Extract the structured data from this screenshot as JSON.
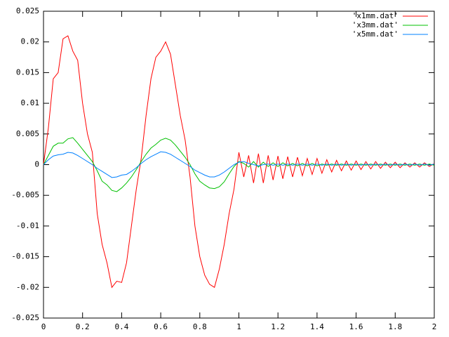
{
  "chart_data": {
    "type": "line",
    "x": [
      0,
      0.025,
      0.05,
      0.075,
      0.1,
      0.125,
      0.15,
      0.175,
      0.2,
      0.225,
      0.25,
      0.275,
      0.3,
      0.325,
      0.35,
      0.375,
      0.4,
      0.425,
      0.45,
      0.475,
      0.5,
      0.525,
      0.55,
      0.575,
      0.6,
      0.625,
      0.65,
      0.675,
      0.7,
      0.725,
      0.75,
      0.775,
      0.8,
      0.825,
      0.85,
      0.875,
      0.9,
      0.925,
      0.95,
      0.975,
      1,
      1.025,
      1.05,
      1.075,
      1.1,
      1.125,
      1.15,
      1.175,
      1.2,
      1.225,
      1.25,
      1.275,
      1.3,
      1.325,
      1.35,
      1.375,
      1.4,
      1.425,
      1.45,
      1.475,
      1.5,
      1.525,
      1.55,
      1.575,
      1.6,
      1.625,
      1.65,
      1.675,
      1.7,
      1.725,
      1.75,
      1.775,
      1.8,
      1.825,
      1.85,
      1.875,
      1.9,
      1.925,
      1.95,
      1.975,
      2
    ],
    "series": [
      {
        "name": "'x1mm.dat'",
        "color": "#ff0000",
        "values": [
          0,
          0.006,
          0.014,
          0.015,
          0.0205,
          0.021,
          0.0185,
          0.017,
          0.01,
          0.005,
          0.002,
          -0.008,
          -0.013,
          -0.016,
          -0.02,
          -0.019,
          -0.0192,
          -0.016,
          -0.01,
          -0.004,
          0.001,
          0.008,
          0.014,
          0.0175,
          0.0185,
          0.02,
          0.018,
          0.013,
          0.008,
          0.004,
          -0.002,
          -0.01,
          -0.015,
          -0.018,
          -0.0195,
          -0.02,
          -0.017,
          -0.013,
          -0.008,
          -0.004,
          0.002,
          -0.002,
          0.0015,
          -0.003,
          0.0018,
          -0.003,
          0.0015,
          -0.0025,
          0.0014,
          -0.0023,
          0.0013,
          -0.002,
          0.0012,
          -0.0018,
          0.001,
          -0.0016,
          0.001,
          -0.0014,
          0.0008,
          -0.0012,
          0.0007,
          -0.001,
          0.0006,
          -0.0009,
          0.0006,
          -0.0008,
          0.0005,
          -0.0007,
          0.0005,
          -0.0006,
          0.0004,
          -0.0005,
          0.0004,
          -0.0005,
          0.0003,
          -0.0004,
          0.0003,
          -0.0004,
          0.0003,
          -0.0003,
          0.0002
        ]
      },
      {
        "name": "'x3mm.dat'",
        "color": "#00c000",
        "values": [
          0,
          0.0015,
          0.003,
          0.0035,
          0.0035,
          0.0042,
          0.0044,
          0.0035,
          0.0025,
          0.0015,
          0.0005,
          -0.001,
          -0.0027,
          -0.0033,
          -0.0042,
          -0.0044,
          -0.0038,
          -0.003,
          -0.002,
          -0.0008,
          0.0005,
          0.0017,
          0.0027,
          0.0033,
          0.004,
          0.0043,
          0.004,
          0.0032,
          0.0022,
          0.0012,
          0,
          -0.0015,
          -0.0027,
          -0.0033,
          -0.0038,
          -0.0039,
          -0.0036,
          -0.0028,
          -0.0015,
          -0.0003,
          0.0005,
          0.0002,
          -0.0004,
          0.0005,
          -0.0004,
          0.0004,
          -0.0003,
          0.0003,
          -0.0003,
          0.0003,
          -0.0002,
          0.0002,
          -0.0002,
          0.0002,
          -0.0002,
          0.0002,
          -0.0002,
          0.0001,
          -0.0001,
          0.0001,
          -0.0001,
          0.0001,
          -0.0001,
          0.0001,
          -0.0001,
          0.0001,
          -0.0001,
          0.0001,
          -0.0001,
          0.0001,
          -0.0001,
          0.0001,
          -0.0001,
          0.0001,
          -0.0001,
          0.0001,
          -0.0001,
          0.0001,
          -0.0001,
          0.0001,
          -0.0001
        ]
      },
      {
        "name": "'x5mm.dat'",
        "color": "#0080ff",
        "values": [
          0,
          0.0008,
          0.0014,
          0.0016,
          0.0017,
          0.002,
          0.0019,
          0.0015,
          0.001,
          0.0005,
          0,
          -0.0006,
          -0.0011,
          -0.0016,
          -0.0021,
          -0.002,
          -0.0017,
          -0.0016,
          -0.0011,
          -0.0005,
          0.0002,
          0.0008,
          0.0013,
          0.0017,
          0.0021,
          0.002,
          0.0017,
          0.0012,
          0.0007,
          0.0002,
          -0.0003,
          -0.0009,
          -0.0013,
          -0.0017,
          -0.002,
          -0.002,
          -0.0017,
          -0.0012,
          -0.0006,
          0,
          0.0004,
          0.0005,
          0.0002,
          0,
          -0.0002,
          0,
          0.0001,
          -0.0001,
          0.0001,
          -0.0001,
          0.0001,
          -0.0001,
          0.0001,
          -0.0001,
          0.0001,
          -0.0001,
          0.0001,
          -0.0001,
          0.0001,
          -0.0001,
          0.0001,
          -0.0001,
          0.0001,
          -0.0001,
          0.0001,
          -0.0001,
          0.0001,
          -0.0001,
          0.0001,
          -0.0001,
          0.0001,
          -0.0001,
          0.0001,
          -0.0001,
          0.0001,
          -0.0001,
          0.0001,
          -0.0001,
          0.0001,
          -0.0001,
          0.0001
        ]
      }
    ],
    "xlim": [
      0,
      2
    ],
    "xticks": [
      0,
      0.2,
      0.4,
      0.6,
      0.8,
      1,
      1.2,
      1.4,
      1.6,
      1.8,
      2
    ],
    "ylim": [
      -0.025,
      0.025
    ],
    "yticks": [
      -0.025,
      -0.02,
      -0.015,
      -0.01,
      -0.005,
      0,
      0.005,
      0.01,
      0.015,
      0.02,
      0.025
    ],
    "legend": "top-right"
  }
}
